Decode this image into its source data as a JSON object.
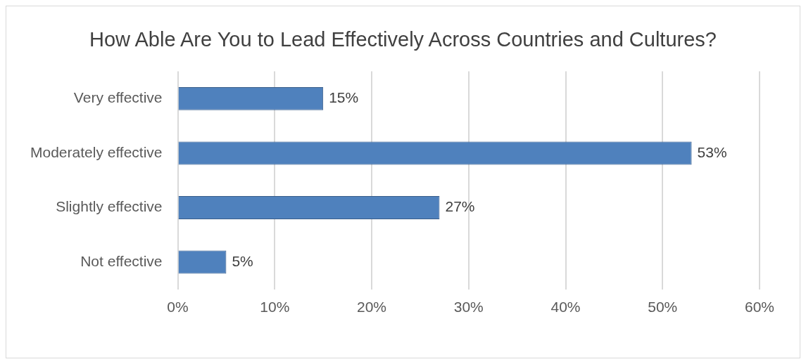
{
  "chart_data": {
    "type": "bar",
    "orientation": "horizontal",
    "title": "How Able Are You to Lead Effectively Across Countries and Cultures?",
    "categories": [
      "Very effective",
      "Moderately effective",
      "Slightly effective",
      "Not effective"
    ],
    "values": [
      15,
      53,
      27,
      5
    ],
    "value_labels": [
      "15%",
      "53%",
      "27%",
      "5%"
    ],
    "color": "#4f81bd",
    "xlim": [
      0,
      60
    ],
    "xticks": [
      {
        "value": 0,
        "label": "0%"
      },
      {
        "value": 10,
        "label": "10%"
      },
      {
        "value": 20,
        "label": "20%"
      },
      {
        "value": 30,
        "label": "30%"
      },
      {
        "value": 40,
        "label": "40%"
      },
      {
        "value": 50,
        "label": "50%"
      },
      {
        "value": 60,
        "label": "60%"
      }
    ],
    "grid": "x",
    "legend": false
  }
}
